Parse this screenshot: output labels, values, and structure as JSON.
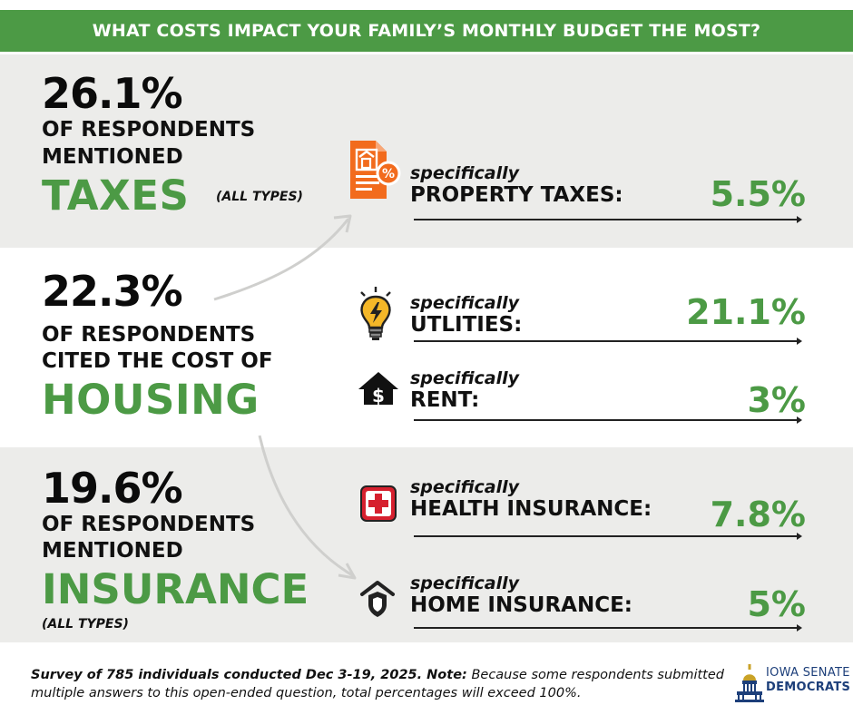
{
  "header": {
    "title": "WHAT COSTS IMPACT YOUR FAMILY’S MONTHLY BUDGET THE MOST?"
  },
  "colors": {
    "accent_green": "#4c9a45",
    "band_gray": "#ececea",
    "orange": "#f26b1d",
    "red": "#d6202e",
    "logo_blue": "#1d3f7a"
  },
  "sections": {
    "taxes": {
      "percent": "26.1%",
      "line1": "OF RESPONDENTS",
      "line2": "MENTIONED",
      "category": "TAXES",
      "note": "(ALL TYPES)",
      "items": [
        {
          "icon": "property-tax-document-icon",
          "specifically": "specifically",
          "name": "PROPERTY TAXES:",
          "value": "5.5%"
        }
      ]
    },
    "housing": {
      "percent": "22.3%",
      "line1": "OF RESPONDENTS",
      "line2": "CITED THE COST OF",
      "category": "HOUSING",
      "items": [
        {
          "icon": "lightbulb-icon",
          "specifically": "specifically",
          "name": "UTLITIES:",
          "value": "21.1%"
        },
        {
          "icon": "house-dollar-icon",
          "specifically": "specifically",
          "name": "RENT:",
          "value": "3%"
        }
      ]
    },
    "insurance": {
      "percent": "19.6%",
      "line1": "OF RESPONDENTS",
      "line2": "MENTIONED",
      "category": "INSURANCE",
      "note": "(ALL TYPES)",
      "items": [
        {
          "icon": "medical-cross-icon",
          "specifically": "specifically",
          "name": "HEALTH INSURANCE:",
          "value": "7.8%"
        },
        {
          "icon": "home-shield-icon",
          "specifically": "specifically",
          "name": "HOME INSURANCE:",
          "value": "5%"
        }
      ]
    }
  },
  "footer": {
    "note_bold": "Survey of 785 individuals conducted Dec 3-19, 2025. Note:",
    "note_text": " Because some respondents submitted multiple answers to this open-ended question, total percentages will exceed 100%.",
    "logo_line1": "IOWA SENATE",
    "logo_line2": "DEMOCRATS",
    "logo_icon": "capitol-dome-icon"
  }
}
